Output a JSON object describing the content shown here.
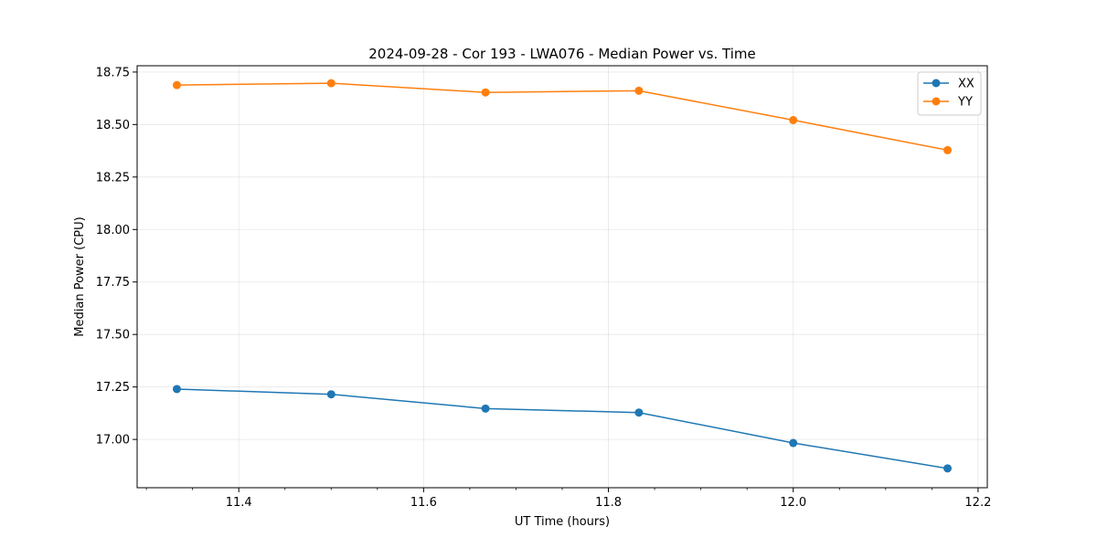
{
  "chart_data": {
    "type": "line",
    "title": "2024-09-28 - Cor 193 - LWA076 - Median Power vs. Time",
    "xlabel": "UT Time (hours)",
    "ylabel": "Median Power (CPU)",
    "xlim": [
      11.29,
      12.21
    ],
    "ylim": [
      16.77,
      18.78
    ],
    "xticks": [
      11.4,
      11.6,
      11.8,
      12.0,
      12.2
    ],
    "xtick_labels": [
      "11.4",
      "11.6",
      "11.8",
      "12.0",
      "12.2"
    ],
    "yticks": [
      17.0,
      17.25,
      17.5,
      17.75,
      18.0,
      18.25,
      18.5,
      18.75
    ],
    "ytick_labels": [
      "17.00",
      "17.25",
      "17.50",
      "17.75",
      "18.00",
      "18.25",
      "18.50",
      "18.75"
    ],
    "grid": true,
    "legend_position": "top-right",
    "x": [
      11.333,
      11.5,
      11.667,
      11.833,
      12.0,
      12.167
    ],
    "series": [
      {
        "name": "XX",
        "color": "#1f77b4",
        "marker": "circle",
        "values": [
          17.24,
          17.215,
          17.147,
          17.128,
          16.983,
          16.862
        ]
      },
      {
        "name": "YY",
        "color": "#ff7f0e",
        "marker": "circle",
        "values": [
          18.688,
          18.697,
          18.653,
          18.661,
          18.521,
          18.378
        ]
      }
    ]
  }
}
